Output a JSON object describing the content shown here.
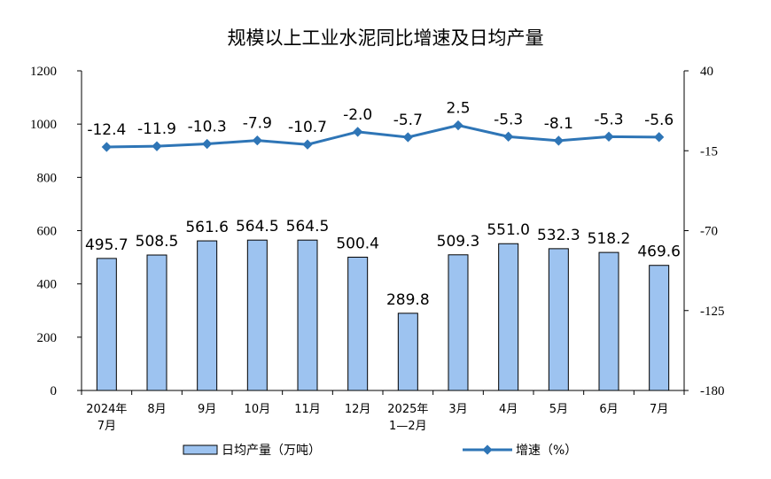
{
  "chart_data": {
    "type": "bar",
    "title": "规模以上工业水泥同比增速及日均产量",
    "categories": [
      [
        "2024年",
        "7月"
      ],
      [
        "8月"
      ],
      [
        "9月"
      ],
      [
        "10月"
      ],
      [
        "11月"
      ],
      [
        "12月"
      ],
      [
        "2025年",
        "1—2月"
      ],
      [
        "3月"
      ],
      [
        "4月"
      ],
      [
        "5月"
      ],
      [
        "6月"
      ],
      [
        "7月"
      ]
    ],
    "series": [
      {
        "name": "日均产量（万吨）",
        "type": "bar",
        "axis": "left",
        "values": [
          495.7,
          508.5,
          561.6,
          564.5,
          564.5,
          500.4,
          289.8,
          509.3,
          551.0,
          532.3,
          518.2,
          469.6
        ],
        "labels": [
          "495.7",
          "508.5",
          "561.6",
          "564.5",
          "564.5",
          "500.4",
          "289.8",
          "509.3",
          "551.0",
          "532.3",
          "518.2",
          "469.6"
        ],
        "color": "#9DC3F0"
      },
      {
        "name": "增速（%）",
        "type": "line",
        "axis": "right",
        "values": [
          -12.4,
          -11.9,
          -10.3,
          -7.9,
          -10.7,
          -2.0,
          -5.7,
          2.5,
          -5.3,
          -8.1,
          -5.3,
          -5.6
        ],
        "labels": [
          "-12.4",
          "-11.9",
          "-10.3",
          "-7.9",
          "-10.7",
          "-2.0",
          "-5.7",
          "2.5",
          "-5.3",
          "-8.1",
          "-5.3",
          "-5.6"
        ],
        "color": "#2E75B6"
      }
    ],
    "y_left": {
      "min": 0,
      "max": 1200,
      "ticks": [
        "0",
        "200",
        "400",
        "600",
        "800",
        "1000",
        "1200"
      ]
    },
    "y_right": {
      "min": -180,
      "max": 40,
      "ticks": [
        "-180",
        "-125",
        "-70",
        "-15",
        "40"
      ]
    },
    "grid": false,
    "legend_position": "bottom"
  }
}
